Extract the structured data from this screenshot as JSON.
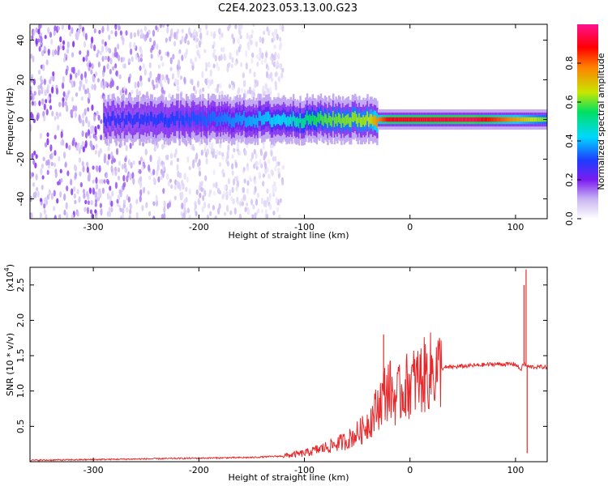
{
  "title": "C2E4.2023.053.13.00.G23",
  "chart_data": [
    {
      "type": "heatmap",
      "xlabel": "Height of straight line (km)",
      "ylabel": "Frequency (Hz)",
      "xlim": [
        -360,
        130
      ],
      "ylim": [
        -50,
        48
      ],
      "xticks": [
        -300,
        -200,
        -100,
        0,
        100
      ],
      "yticks": [
        -40,
        -20,
        0,
        20,
        40
      ],
      "colorbar": {
        "label": "Normalized spectral amplitude",
        "range": [
          0.0,
          1.0
        ],
        "ticks": [
          0.0,
          0.2,
          0.4,
          0.6,
          0.8
        ],
        "colormap": [
          "#ffffff",
          "#c9b6f2",
          "#7b1cf0",
          "#1f3cff",
          "#00d8ff",
          "#00e060",
          "#c8e600",
          "#ff8000",
          "#ff0000",
          "#ff1090"
        ]
      },
      "signal_band": {
        "x_range": [
          -290,
          130
        ],
        "center_frequency_hz": 0,
        "description_levels": [
          {
            "x": -280,
            "peak_amplitude": 0.3
          },
          {
            "x": -200,
            "peak_amplitude": 0.35
          },
          {
            "x": -120,
            "peak_amplitude": 0.45
          },
          {
            "x": -80,
            "peak_amplitude": 0.6
          },
          {
            "x": -40,
            "peak_amplitude": 0.65
          },
          {
            "x": -20,
            "peak_amplitude": 0.9
          },
          {
            "x": 60,
            "peak_amplitude": 0.95
          },
          {
            "x": 100,
            "peak_amplitude": 0.75
          },
          {
            "x": 130,
            "peak_amplitude": 0.6
          }
        ]
      },
      "noise_region_x": [
        -360,
        -130
      ]
    },
    {
      "type": "line",
      "xlabel": "Height of straight line (km)",
      "ylabel": "SNR (10 * v/v)",
      "y_scale_label": "(x10",
      "y_scale_exponent": "4",
      "xlim": [
        -360,
        130
      ],
      "ylim": [
        0,
        2.75
      ],
      "xticks": [
        -300,
        -200,
        -100,
        0,
        100
      ],
      "yticks": [
        0.5,
        1.0,
        1.5,
        2.0,
        2.5
      ],
      "color": "#e8282a",
      "series": [
        {
          "x": [
            -360,
            -300,
            -250,
            -200,
            -150,
            -120,
            -100,
            -80,
            -60,
            -45,
            -35,
            -25,
            -20,
            -15,
            -10,
            -5,
            0,
            10,
            20,
            30,
            40,
            60,
            80,
            100,
            105,
            108,
            110,
            115,
            130
          ],
          "y": [
            0.02,
            0.03,
            0.04,
            0.05,
            0.06,
            0.08,
            0.12,
            0.2,
            0.3,
            0.45,
            0.65,
            0.95,
            1.05,
            0.9,
            0.95,
            1.05,
            1.1,
            1.18,
            1.28,
            1.32,
            1.34,
            1.36,
            1.38,
            1.38,
            1.3,
            1.4,
            1.35,
            1.34,
            1.34
          ],
          "spikes": [
            {
              "x": -25,
              "y": 1.8
            },
            {
              "x": 108,
              "y": 2.5
            },
            {
              "x": 110,
              "y": 2.72
            },
            {
              "x": 111,
              "y": 0.12
            }
          ]
        }
      ]
    }
  ]
}
